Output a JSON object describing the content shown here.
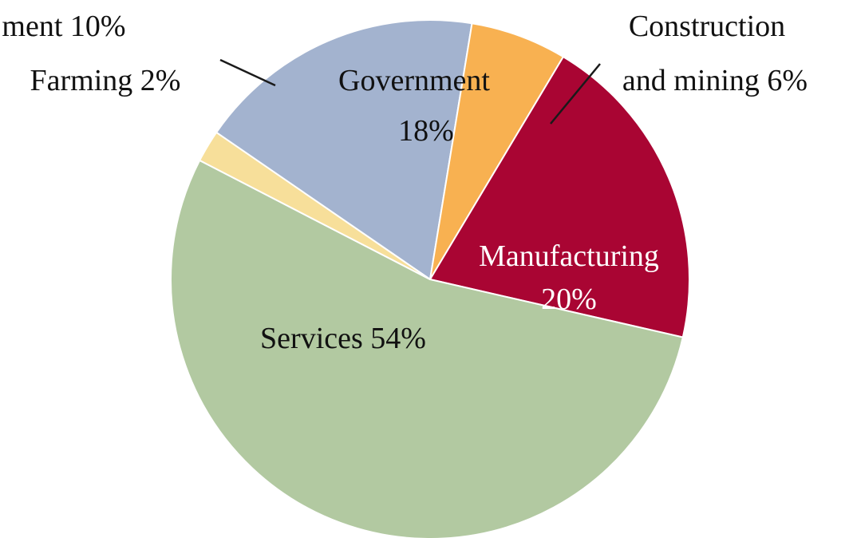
{
  "chart_data": {
    "type": "pie",
    "title": "",
    "slices": [
      {
        "name": "Government",
        "value": 18,
        "color": "#a3b3cf",
        "label_lines": [
          "Government",
          "18%"
        ]
      },
      {
        "name": "Construction and mining",
        "value": 6,
        "color": "#f8b151",
        "label_lines": [
          "Construction",
          "and mining 6%"
        ]
      },
      {
        "name": "Manufacturing",
        "value": 20,
        "color": "#a90533",
        "label_lines": [
          "Manufacturing",
          "20%"
        ]
      },
      {
        "name": "Services",
        "value": 54,
        "color": "#b2c9a1",
        "label_lines": [
          "Services 54%"
        ]
      },
      {
        "name": "Farming",
        "value": 2,
        "color": "#f7df9a",
        "label_lines": [
          "Farming 2%"
        ]
      }
    ],
    "extra_labels": [
      {
        "text": "ment 10%"
      }
    ]
  }
}
